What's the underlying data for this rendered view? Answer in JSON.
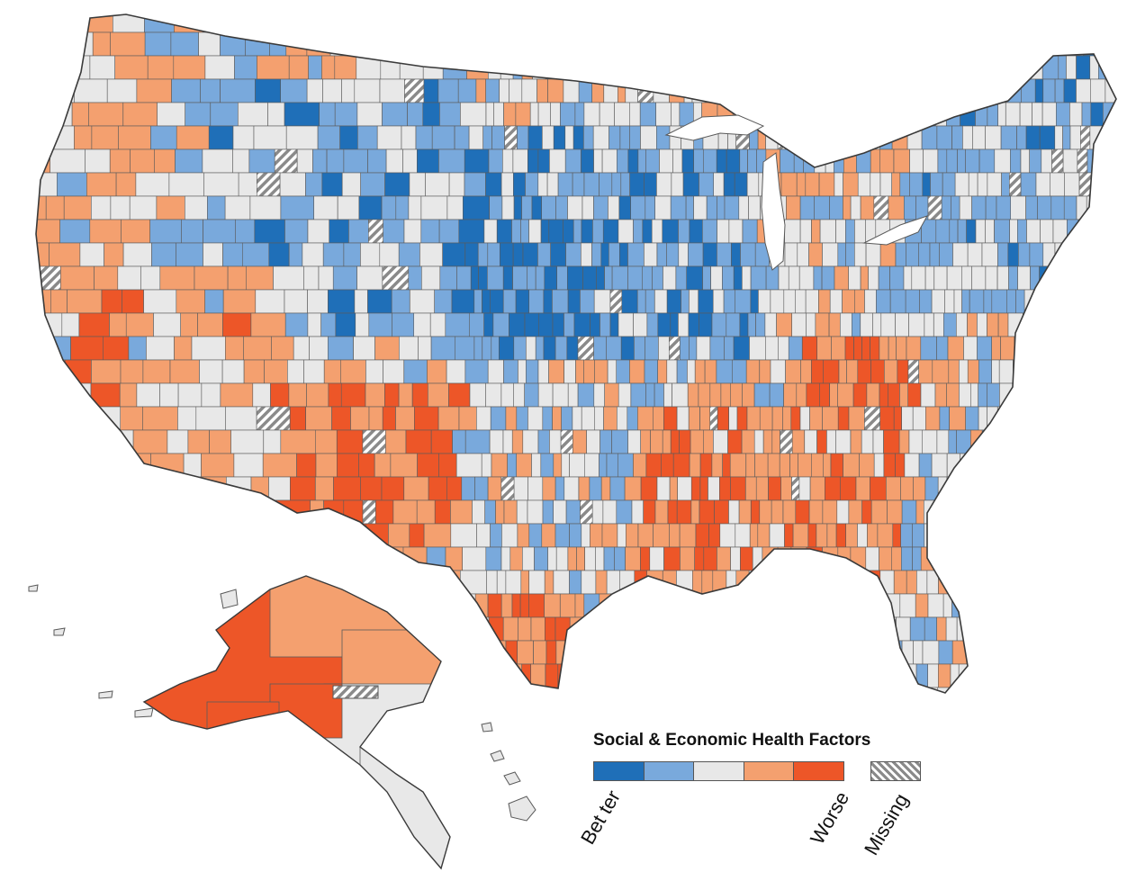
{
  "legend": {
    "title": "Social & Economic Health Factors",
    "label_better": "Bet ter",
    "label_worse": "Worse",
    "label_missing": "Missing",
    "classes": [
      {
        "id": "better-2",
        "color": "#1f6fb8"
      },
      {
        "id": "better-1",
        "color": "#79a9dc"
      },
      {
        "id": "average",
        "color": "#e8e8e8"
      },
      {
        "id": "worse-1",
        "color": "#f4a06f"
      },
      {
        "id": "worse-2",
        "color": "#ed5628"
      }
    ],
    "missing_pattern": "hatched-gray"
  },
  "colors": {
    "county_border": "#5a5a5a",
    "state_border": "#3a3a3a",
    "background": "#ffffff"
  }
}
